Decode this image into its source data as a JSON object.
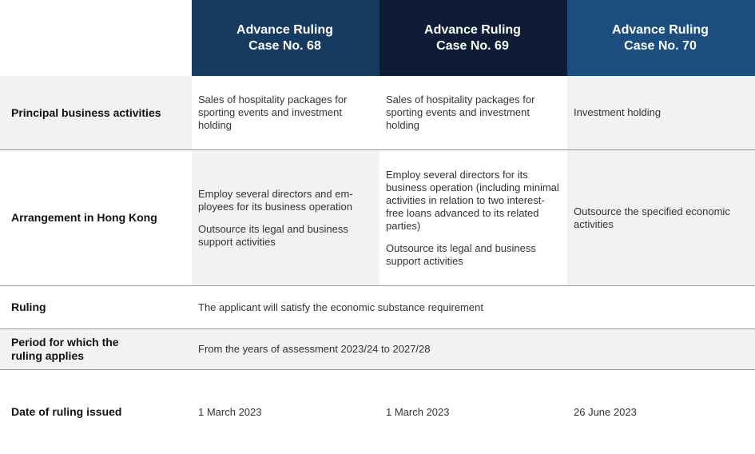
{
  "table": {
    "header": [
      {
        "lines": [
          "Advance Ruling",
          "Case No. 68"
        ]
      },
      {
        "lines": [
          "Advance Ruling",
          "Case No. 69"
        ]
      },
      {
        "lines": [
          "Advance Ruling",
          "Case No. 70"
        ]
      }
    ],
    "rows": [
      {
        "label": "Principal business activities",
        "cells": [
          [
            "Sales of hospitality packages for sporting events and investment holding"
          ],
          [
            "Sales of hospitality packages for sporting events and investment holding"
          ],
          [
            "Investment holding"
          ]
        ]
      },
      {
        "label": "Arrangement in Hong Kong",
        "cells": [
          [
            "Employ several directors and em-ployees for its business operation",
            "Outsource its legal and business support activities"
          ],
          [
            "Employ several directors for its business operation (including minimal activities in relation to two interest-free loans advanced to its related parties)",
            "Outsource its legal and business support activities"
          ],
          [
            "Outsource the specified economic activities"
          ]
        ]
      },
      {
        "label": "Ruling",
        "cells": [
          [
            "The applicant will satisfy the economic substance requirement"
          ]
        ]
      },
      {
        "label": "Period for which the ruling applies",
        "cells": [
          [
            "From the years of assessment 2023/24 to 2027/28"
          ]
        ]
      },
      {
        "label": "Date of ruling issued",
        "cells": [
          [
            "1 March 2023"
          ],
          [
            "1 March 2023"
          ],
          [
            "26 June 2023"
          ]
        ]
      }
    ]
  }
}
